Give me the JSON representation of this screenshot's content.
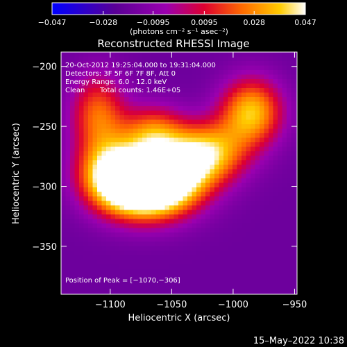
{
  "chart_data": {
    "type": "heatmap",
    "title": "Reconstructed RHESSI Image",
    "xlabel": "Heliocentric X (arcsec)",
    "ylabel": "Heliocentric Y (arcsec)",
    "xlim": [
      -1140,
      -948
    ],
    "ylim": [
      -390,
      -188
    ],
    "x_ticks": [
      -1100,
      -1050,
      -1000,
      -950
    ],
    "y_ticks": [
      -200,
      -250,
      -300,
      -350
    ],
    "x_tick_labels": [
      "−1100",
      "−1050",
      "−1000",
      "−950"
    ],
    "y_tick_labels": [
      "−200",
      "−250",
      "−300",
      "−350"
    ],
    "colorbar": {
      "range": [
        -0.047,
        0.047
      ],
      "ticks": [
        -0.047,
        -0.028,
        -0.0095,
        0.0095,
        0.028,
        0.047
      ],
      "tick_labels": [
        "−0.047",
        "−0.028",
        "−0.0095",
        "0.0095",
        "0.028",
        "0.047"
      ],
      "label": "(photons cm⁻² s⁻¹ asec⁻²)"
    },
    "annotations": {
      "time_range": "20-Oct-2012 19:25:04.000 to 19:31:04.000",
      "detectors": "Detectors: 3F 5F 6F 7F 8F, Att 0",
      "energy": "Energy Range: 6.0 - 12.0 keV",
      "method": "Clean",
      "counts": "Total counts: 1.46E+05",
      "peak": "Position of Peak = [−1070,−306]"
    },
    "sources": [
      {
        "x": -1072,
        "y": -303,
        "peak": 0.047,
        "sx": 24,
        "sy": 18
      },
      {
        "x": -1098,
        "y": -290,
        "peak": 0.04,
        "sx": 20,
        "sy": 20
      },
      {
        "x": -1052,
        "y": -292,
        "peak": 0.038,
        "sx": 24,
        "sy": 20
      },
      {
        "x": -1020,
        "y": -272,
        "peak": 0.033,
        "sx": 22,
        "sy": 18
      },
      {
        "x": -985,
        "y": -238,
        "peak": 0.036,
        "sx": 18,
        "sy": 20
      },
      {
        "x": -1110,
        "y": -240,
        "peak": 0.022,
        "sx": 16,
        "sy": 24
      },
      {
        "x": -1065,
        "y": -255,
        "peak": 0.02,
        "sx": 18,
        "sy": 16
      }
    ],
    "background": -0.018,
    "timestamp": "15–May–2022 10:38"
  }
}
